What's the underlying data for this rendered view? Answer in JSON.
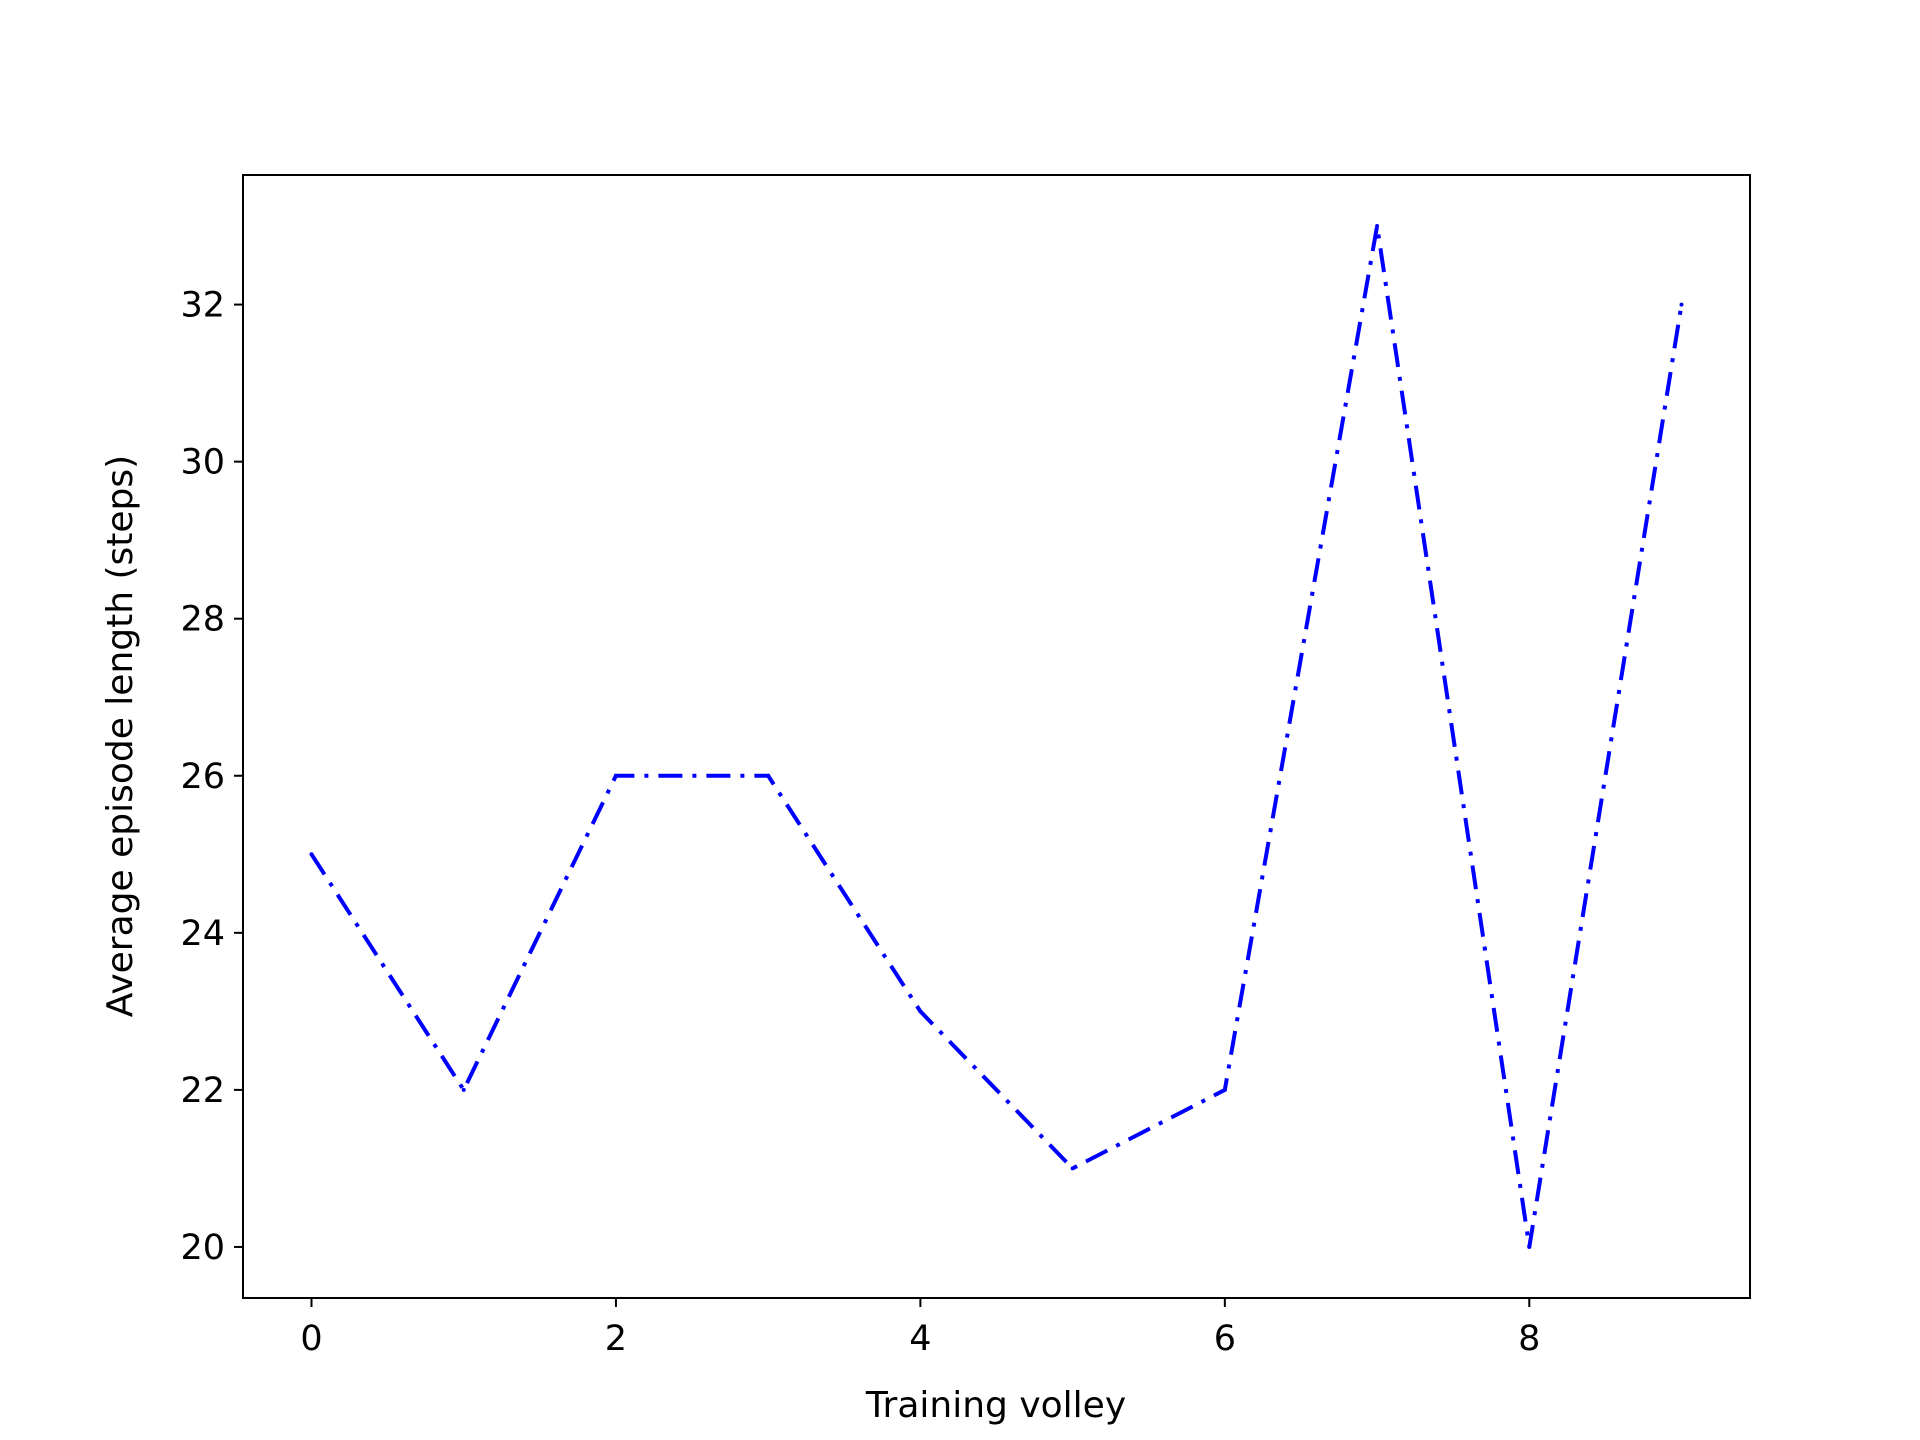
{
  "chart_data": {
    "type": "line",
    "title": "",
    "xlabel": "Training volley",
    "ylabel": "Average episode length (steps)",
    "xlim": [
      -0.45,
      9.45
    ],
    "ylim": [
      19.35,
      33.65
    ],
    "xticks": [
      0,
      2,
      4,
      6,
      8
    ],
    "yticks": [
      20,
      22,
      24,
      26,
      28,
      30,
      32
    ],
    "x": [
      0,
      1,
      2,
      3,
      4,
      5,
      6,
      7,
      8,
      9
    ],
    "series": [
      {
        "values": [
          25,
          22,
          26,
          26,
          23,
          21,
          22,
          33,
          20,
          32
        ],
        "color": "#0000ff",
        "line_style": "dash-dot"
      }
    ],
    "grid": false,
    "legend": "none"
  }
}
